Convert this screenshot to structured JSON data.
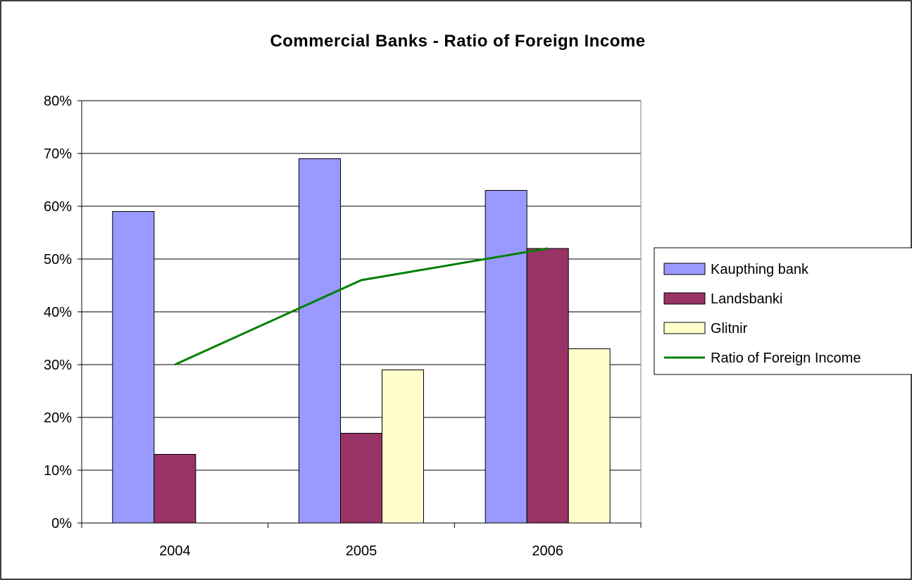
{
  "chart_data": {
    "type": "bar",
    "title": "Commercial Banks - Ratio of Foreign Income",
    "xlabel": "",
    "ylabel": "",
    "categories": [
      "2004",
      "2005",
      "2006"
    ],
    "ylim": [
      0,
      0.8
    ],
    "yticks": [
      0,
      0.1,
      0.2,
      0.3,
      0.4,
      0.5,
      0.6,
      0.7,
      0.8
    ],
    "ytick_labels": [
      "0%",
      "10%",
      "20%",
      "30%",
      "40%",
      "50%",
      "60%",
      "70%",
      "80%"
    ],
    "grid": true,
    "legend_position": "right",
    "series": [
      {
        "name": "Kaupthing bank",
        "kind": "bar",
        "color": "#9999FF",
        "values": [
          0.59,
          0.69,
          0.63
        ]
      },
      {
        "name": "Landsbanki",
        "kind": "bar",
        "color": "#993366",
        "values": [
          0.13,
          0.17,
          0.52
        ]
      },
      {
        "name": "Glitnir",
        "kind": "bar",
        "color": "#FFFFCC",
        "values": [
          null,
          0.29,
          0.33
        ]
      },
      {
        "name": "Ratio of Foreign Income",
        "kind": "line",
        "color": "#008000",
        "values": [
          0.3,
          0.46,
          0.52
        ]
      }
    ]
  }
}
